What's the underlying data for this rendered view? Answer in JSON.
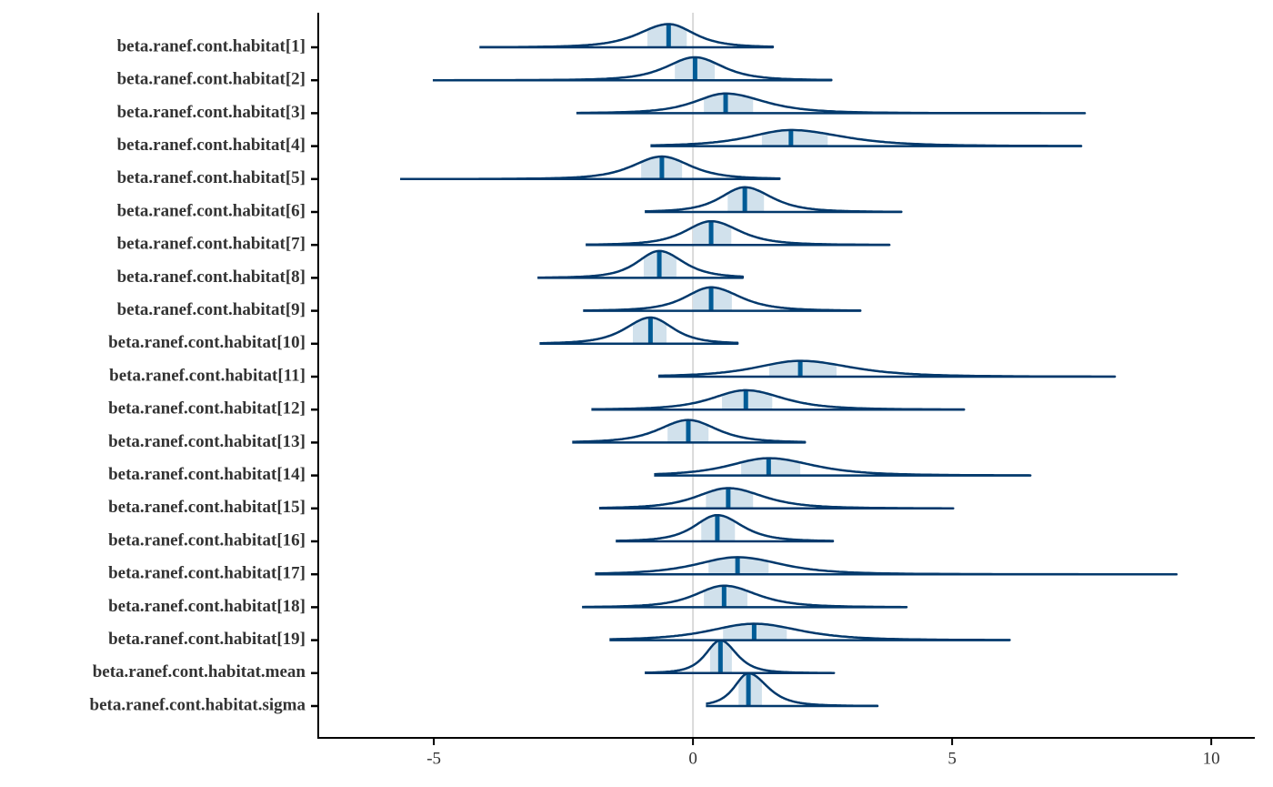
{
  "chart_data": {
    "type": "areas",
    "categories": [
      "beta.ranef.cont.habitat[1]",
      "beta.ranef.cont.habitat[2]",
      "beta.ranef.cont.habitat[3]",
      "beta.ranef.cont.habitat[4]",
      "beta.ranef.cont.habitat[5]",
      "beta.ranef.cont.habitat[6]",
      "beta.ranef.cont.habitat[7]",
      "beta.ranef.cont.habitat[8]",
      "beta.ranef.cont.habitat[9]",
      "beta.ranef.cont.habitat[10]",
      "beta.ranef.cont.habitat[11]",
      "beta.ranef.cont.habitat[12]",
      "beta.ranef.cont.habitat[13]",
      "beta.ranef.cont.habitat[14]",
      "beta.ranef.cont.habitat[15]",
      "beta.ranef.cont.habitat[16]",
      "beta.ranef.cont.habitat[17]",
      "beta.ranef.cont.habitat[18]",
      "beta.ranef.cont.habitat[19]",
      "beta.ranef.cont.habitat.mean",
      "beta.ranef.cont.habitat.sigma"
    ],
    "min": [
      -4.12,
      -5.02,
      -2.25,
      -0.82,
      -5.65,
      -0.93,
      -2.07,
      -3.0,
      -2.12,
      -2.96,
      -0.67,
      -1.96,
      -2.33,
      -0.75,
      -1.81,
      -1.49,
      -1.89,
      -2.14,
      -1.61,
      -0.93,
      0.25
    ],
    "inner_low": [
      -0.88,
      -0.35,
      0.21,
      1.33,
      -1.0,
      0.67,
      0.0,
      -0.95,
      0.0,
      -1.16,
      1.47,
      0.56,
      -0.49,
      0.93,
      0.25,
      0.16,
      0.3,
      0.21,
      0.58,
      0.33,
      0.88
    ],
    "median": [
      -0.47,
      0.04,
      0.63,
      1.89,
      -0.6,
      1.0,
      0.35,
      -0.65,
      0.35,
      -0.82,
      2.07,
      1.02,
      -0.09,
      1.46,
      0.68,
      0.47,
      0.86,
      0.6,
      1.18,
      0.53,
      1.07
    ],
    "inner_high": [
      -0.12,
      0.42,
      1.16,
      2.6,
      -0.21,
      1.37,
      0.74,
      -0.32,
      0.75,
      -0.51,
      2.77,
      1.53,
      0.3,
      2.07,
      1.16,
      0.81,
      1.46,
      1.05,
      1.81,
      0.75,
      1.33
    ],
    "max": [
      1.54,
      2.67,
      7.56,
      7.49,
      1.67,
      4.02,
      3.79,
      0.96,
      3.23,
      0.86,
      8.14,
      5.23,
      2.16,
      6.51,
      5.02,
      2.7,
      9.33,
      4.12,
      6.11,
      2.72,
      3.56
    ],
    "xlim": [
      -7.23,
      10.84
    ],
    "xticks": [
      -5,
      0,
      5,
      10
    ],
    "vline": 0,
    "line_color": "#03396c",
    "fill_color": "#d1e1ec",
    "median_color": "#005b96"
  }
}
